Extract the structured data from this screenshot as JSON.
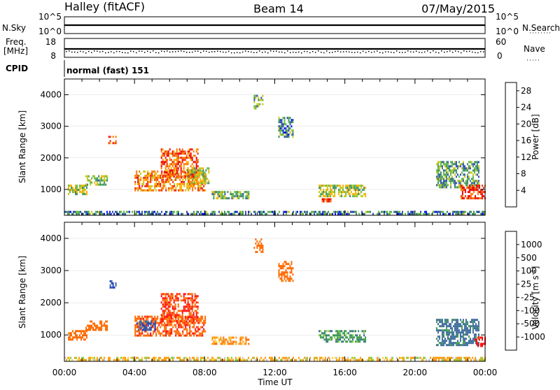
{
  "header": {
    "station": "Halley (fitACF)",
    "beam": "Beam 14",
    "date": "07/May/2015"
  },
  "strip_panels": {
    "nsky": {
      "label": "N.Sky",
      "ticks_left": [
        "10^5",
        "10^0"
      ],
      "right_label": "N.Search",
      "ticks_right": [
        "10^5",
        "10^0"
      ]
    },
    "freq": {
      "label_line1": "Freq.",
      "label_line2": "[MHz]",
      "ticks_left": [
        "18",
        "8"
      ],
      "right_label": "Nave",
      "ticks_right": [
        "60",
        "0"
      ]
    },
    "cpid": {
      "label": "CPID",
      "value": "normal (fast) 151"
    }
  },
  "x_axis": {
    "label": "Time UT",
    "ticks": [
      "00:00",
      "04:00",
      "08:00",
      "12:00",
      "16:00",
      "20:00",
      "00:00"
    ]
  },
  "colors": {
    "power_scale": [
      "#1010ff",
      "#3050b0",
      "#3c8a6a",
      "#5fb84a",
      "#c8c81a",
      "#ffb000",
      "#ff7a00",
      "#ee3010",
      "#ee0000"
    ],
    "velocity_scale": [
      "#ff1010",
      "#ff6a00",
      "#ff9a10",
      "#ffd040",
      "#c8c8c8",
      "#80d040",
      "#3c9a50",
      "#3c6a9a",
      "#2040c0"
    ]
  },
  "chart_data": [
    {
      "type": "heatmap",
      "title": "",
      "xlabel": "Time UT",
      "ylabel": "Slant Range [km]",
      "xlim": [
        0,
        24
      ],
      "ylim": [
        180,
        4500
      ],
      "yticks": [
        "4000",
        "3000",
        "2000",
        "1000"
      ],
      "colorbar": {
        "label": "Power [dB]",
        "ticks": [
          "28",
          "24",
          "20",
          "16",
          "12",
          "8",
          "4"
        ],
        "range": [
          0,
          30
        ]
      },
      "blobs": [
        {
          "t0": 0.2,
          "t1": 1.3,
          "r0": 850,
          "r1": 1150,
          "val": 14
        },
        {
          "t0": 1.2,
          "t1": 2.4,
          "r0": 1150,
          "r1": 1450,
          "val": 12
        },
        {
          "t0": 2.5,
          "t1": 2.9,
          "r0": 2500,
          "r1": 2700,
          "val": 22
        },
        {
          "t0": 4.0,
          "t1": 8.0,
          "r0": 950,
          "r1": 1600,
          "val": 21
        },
        {
          "t0": 5.5,
          "t1": 7.6,
          "r0": 1400,
          "r1": 2300,
          "val": 24
        },
        {
          "t0": 7.0,
          "t1": 8.2,
          "r0": 1200,
          "r1": 1700,
          "val": 14
        },
        {
          "t0": 8.4,
          "t1": 10.5,
          "r0": 750,
          "r1": 950,
          "val": 12
        },
        {
          "t0": 10.8,
          "t1": 11.3,
          "r0": 3600,
          "r1": 4000,
          "val": 10
        },
        {
          "t0": 12.2,
          "t1": 13.0,
          "r0": 2700,
          "r1": 3300,
          "val": 8
        },
        {
          "t0": 14.5,
          "t1": 17.2,
          "r0": 800,
          "r1": 1150,
          "val": 14
        },
        {
          "t0": 14.6,
          "t1": 15.2,
          "r0": 620,
          "r1": 720,
          "val": 26
        },
        {
          "t0": 21.2,
          "t1": 23.6,
          "r0": 1100,
          "r1": 1900,
          "val": 10
        },
        {
          "t0": 22.6,
          "t1": 24.0,
          "r0": 700,
          "r1": 1150,
          "val": 26
        },
        {
          "t0": 0.0,
          "t1": 24.0,
          "r0": 250,
          "r1": 320,
          "val": 8
        }
      ]
    },
    {
      "type": "heatmap",
      "title": "",
      "xlabel": "Time UT",
      "ylabel": "Slant Range [km]",
      "xlim": [
        0,
        24
      ],
      "ylim": [
        180,
        4500
      ],
      "yticks": [
        "4000",
        "3000",
        "2000",
        "1000"
      ],
      "colorbar": {
        "label": "Velocity [m s^-1]",
        "ticks": [
          "1000",
          "500",
          "100",
          "25",
          "-25",
          "-100",
          "-500",
          "-1000"
        ],
        "range": [
          -1200,
          1200
        ]
      },
      "blobs": [
        {
          "t0": 0.2,
          "t1": 1.3,
          "r0": 850,
          "r1": 1150,
          "val": -200
        },
        {
          "t0": 1.2,
          "t1": 2.4,
          "r0": 1150,
          "r1": 1450,
          "val": -250
        },
        {
          "t0": 2.5,
          "t1": 2.9,
          "r0": 2500,
          "r1": 2700,
          "val": 600
        },
        {
          "t0": 4.0,
          "t1": 8.0,
          "r0": 950,
          "r1": 1600,
          "val": -400
        },
        {
          "t0": 5.5,
          "t1": 7.6,
          "r0": 1400,
          "r1": 2300,
          "val": -500
        },
        {
          "t0": 4.1,
          "t1": 5.2,
          "r0": 1150,
          "r1": 1450,
          "val": 500
        },
        {
          "t0": 8.4,
          "t1": 10.5,
          "r0": 750,
          "r1": 950,
          "val": -60
        },
        {
          "t0": 10.8,
          "t1": 11.3,
          "r0": 3600,
          "r1": 4000,
          "val": -300
        },
        {
          "t0": 12.2,
          "t1": 13.0,
          "r0": 2700,
          "r1": 3300,
          "val": -200
        },
        {
          "t0": 14.5,
          "t1": 17.2,
          "r0": 800,
          "r1": 1150,
          "val": 60
        },
        {
          "t0": 21.2,
          "t1": 23.6,
          "r0": 700,
          "r1": 1500,
          "val": 150
        },
        {
          "t0": 23.4,
          "t1": 24.0,
          "r0": 650,
          "r1": 950,
          "val": -700
        },
        {
          "t0": 0.0,
          "t1": 24.0,
          "r0": 250,
          "r1": 320,
          "val": -30
        }
      ]
    }
  ]
}
